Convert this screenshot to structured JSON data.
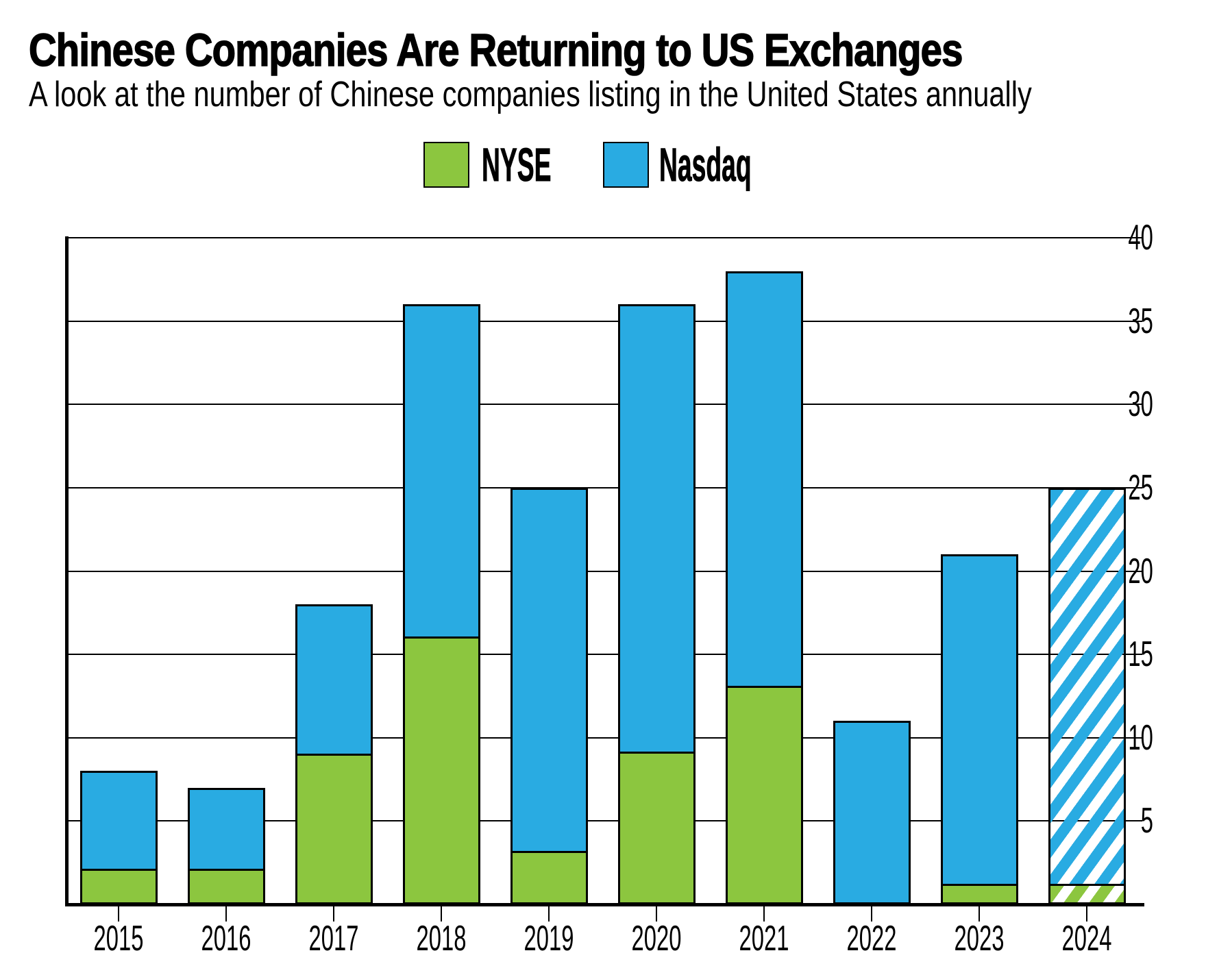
{
  "header": {
    "title": "Chinese Companies Are Returning to US Exchanges",
    "subtitle": "A look at the number of Chinese companies listing in the United States annually"
  },
  "legend": {
    "items": [
      {
        "label": "NYSE",
        "color": "#8CC63F"
      },
      {
        "label": "Nasdaq",
        "color": "#29ABE2"
      }
    ]
  },
  "colors": {
    "nyse_green": "#8CC63F",
    "nasdaq_blue": "#29ABE2",
    "axis_black": "#000000",
    "background": "#FFFFFF"
  },
  "chart_data": {
    "type": "bar",
    "stacked": true,
    "title": "Chinese Companies Are Returning to US Exchanges",
    "subtitle": "A look at the number of Chinese companies listing in the United States annually",
    "categories": [
      "2015",
      "2016",
      "2017",
      "2018",
      "2019",
      "2020",
      "2021",
      "2022",
      "2023",
      "2024"
    ],
    "series": [
      {
        "name": "NYSE",
        "color": "#8CC63F",
        "values": [
          2,
          2,
          9,
          16,
          3,
          9,
          13,
          0,
          1,
          1
        ]
      },
      {
        "name": "Nasdaq",
        "color": "#29ABE2",
        "values": [
          6,
          5,
          9,
          20,
          22,
          27,
          25,
          11,
          20,
          24
        ]
      }
    ],
    "totals": [
      8,
      7,
      18,
      36,
      25,
      36,
      38,
      11,
      21,
      25
    ],
    "projected_category": "2024",
    "projected_style": "diagonal-hatch",
    "xlabel": "",
    "ylabel": "",
    "ylim": [
      0,
      40
    ],
    "yticks": [
      5,
      10,
      15,
      20,
      25,
      30,
      35,
      40
    ],
    "grid": true,
    "legend_position": "top-center"
  }
}
